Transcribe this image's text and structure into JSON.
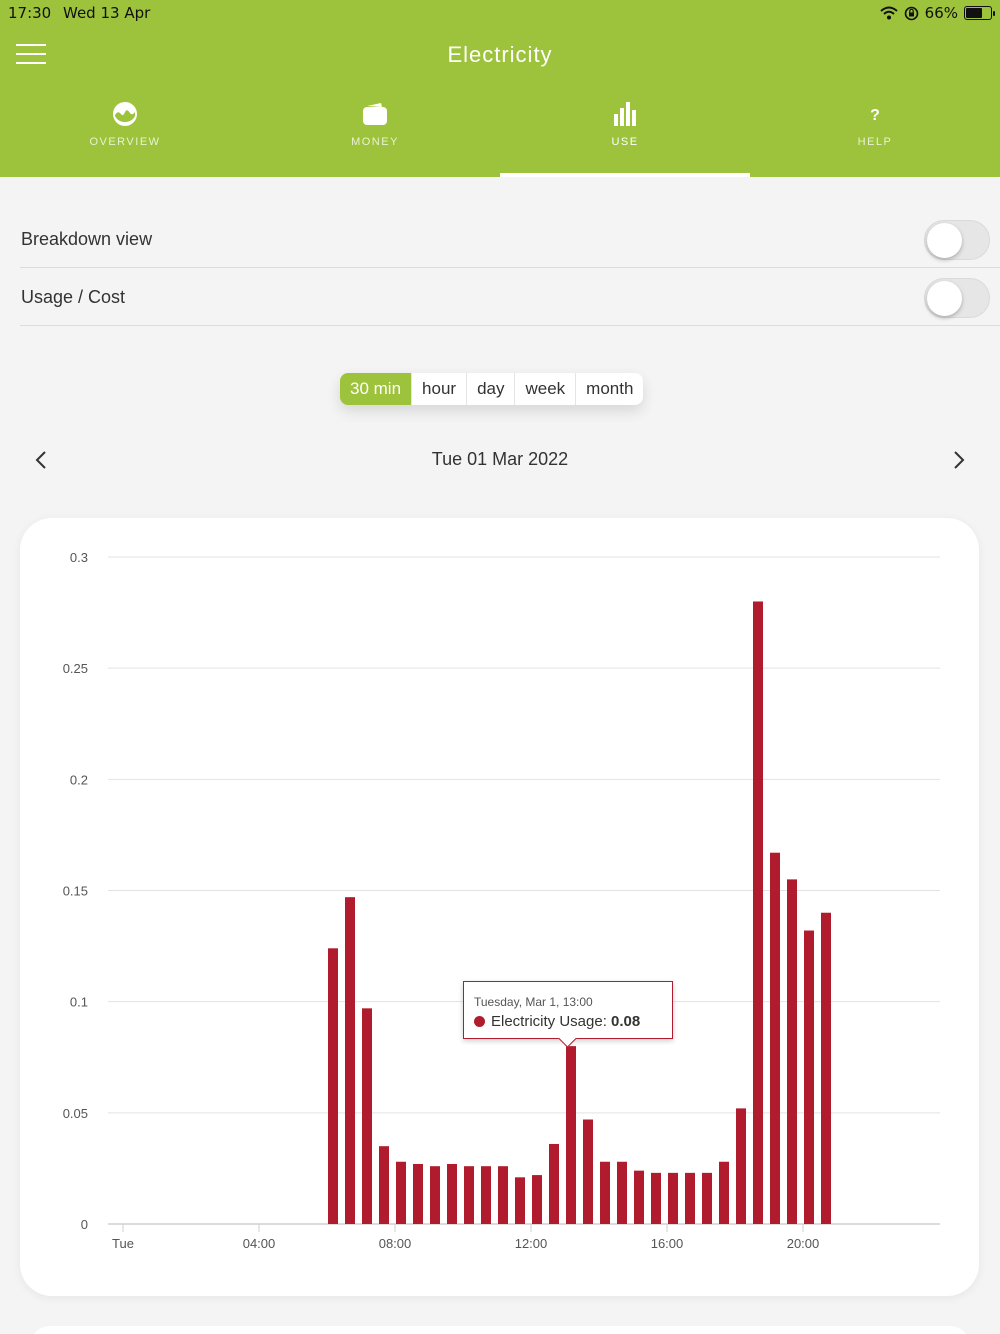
{
  "status": {
    "time": "17:30",
    "date": "Wed 13 Apr",
    "battery": "66%",
    "battery_level": 0.66
  },
  "app": {
    "title": "Electricity"
  },
  "tabs": [
    {
      "label": "OVERVIEW",
      "icon": "gauge-icon",
      "active": false
    },
    {
      "label": "MONEY",
      "icon": "wallet-icon",
      "active": false
    },
    {
      "label": "USE",
      "icon": "bar-chart-icon",
      "active": true
    },
    {
      "label": "HELP",
      "icon": "question-icon",
      "active": false
    }
  ],
  "toggles": [
    {
      "label": "Breakdown view",
      "on": false
    },
    {
      "label": "Usage / Cost",
      "on": false
    }
  ],
  "periods": {
    "options": [
      "30 min",
      "hour",
      "day",
      "week",
      "month"
    ],
    "selected": "30 min"
  },
  "date_nav": {
    "label": "Tue 01 Mar 2022"
  },
  "tooltip": {
    "date": "Tuesday, Mar 1, 13:00",
    "series": "Electricity Usage",
    "value": "0.08"
  },
  "colors": {
    "brand": "#9dc23b",
    "bar": "#b01c2e"
  },
  "chart_data": {
    "type": "bar",
    "title": "",
    "xlabel": "",
    "ylabel": "",
    "ylim": [
      0,
      0.3
    ],
    "yticks": [
      "0",
      "0.05",
      "0.1",
      "0.15",
      "0.2",
      "0.25",
      "0.3"
    ],
    "xticks": [
      {
        "label": "Tue",
        "hour": 0
      },
      {
        "label": "04:00",
        "hour": 4
      },
      {
        "label": "08:00",
        "hour": 8
      },
      {
        "label": "12:00",
        "hour": 12
      },
      {
        "label": "16:00",
        "hour": 16
      },
      {
        "label": "20:00",
        "hour": 20
      }
    ],
    "grid": true,
    "series": [
      {
        "name": "Electricity Usage",
        "interval_minutes": 30,
        "x": [
          "06:00",
          "06:30",
          "07:00",
          "07:30",
          "08:00",
          "08:30",
          "09:00",
          "09:30",
          "10:00",
          "10:30",
          "11:00",
          "11:30",
          "12:00",
          "12:30",
          "13:00",
          "13:30",
          "14:00",
          "14:30",
          "15:00",
          "15:30",
          "16:00",
          "16:30",
          "17:00",
          "17:30",
          "18:00",
          "18:30",
          "19:00",
          "19:30",
          "20:00",
          "20:30"
        ],
        "values": [
          0.124,
          0.147,
          0.097,
          0.035,
          0.028,
          0.027,
          0.026,
          0.027,
          0.026,
          0.026,
          0.026,
          0.021,
          0.022,
          0.036,
          0.08,
          0.047,
          0.028,
          0.028,
          0.024,
          0.023,
          0.023,
          0.023,
          0.023,
          0.028,
          0.052,
          0.28,
          0.167,
          0.155,
          0.132,
          0.14
        ]
      }
    ]
  }
}
